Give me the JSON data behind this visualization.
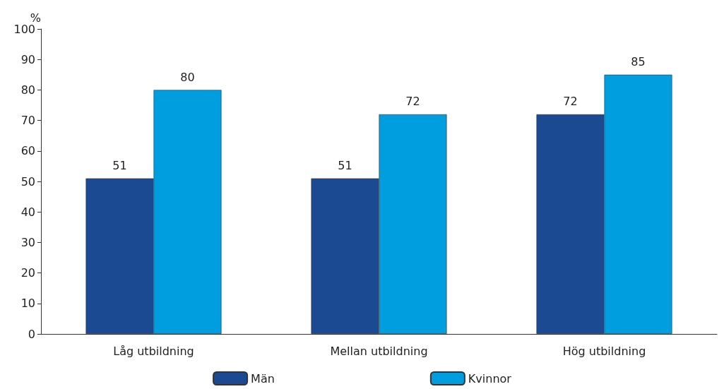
{
  "chart_data": {
    "type": "bar",
    "ylabel": "%",
    "categories": [
      "Låg utbildning",
      "Mellan utbildning",
      "Hög utbildning"
    ],
    "series": [
      {
        "name": "Män",
        "color": "#1b4a92",
        "values": [
          51,
          51,
          72
        ]
      },
      {
        "name": "Kvinnor",
        "color": "#009ede",
        "values": [
          80,
          72,
          85
        ]
      }
    ],
    "ylim": [
      0,
      100
    ],
    "yticks": [
      0,
      10,
      20,
      30,
      40,
      50,
      60,
      70,
      80,
      90,
      100
    ],
    "grid": false,
    "legend": "bottom",
    "data_labels": true
  }
}
